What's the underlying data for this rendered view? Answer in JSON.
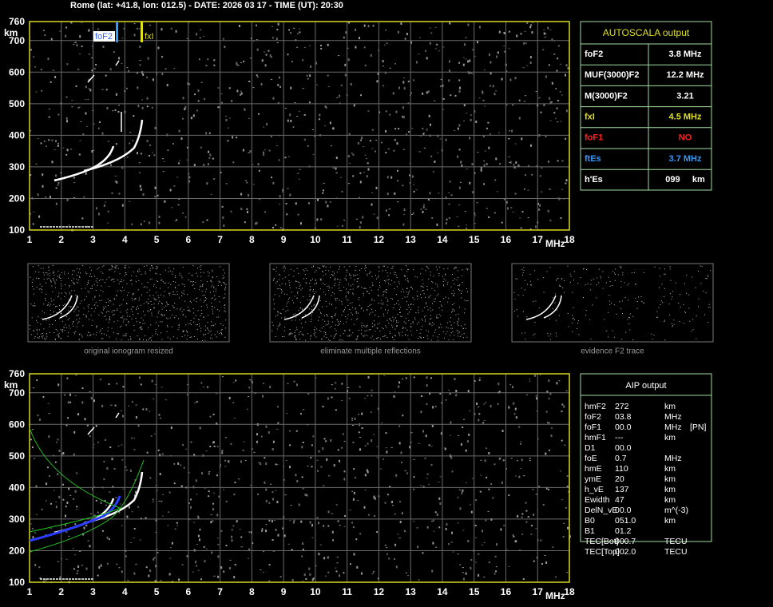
{
  "header": "Rome (lat: +41.8, lon: 012.5) - DATE: 2026 03 17 - TIME (UT): 20:30",
  "ionogram_top": {
    "y_unit": "km",
    "x_unit": "MHz",
    "xlim": [
      1,
      18
    ],
    "ylim": [
      100,
      760
    ],
    "xticks": [
      1,
      2,
      3,
      4,
      5,
      6,
      7,
      8,
      9,
      10,
      11,
      12,
      13,
      14,
      15,
      16,
      17,
      18
    ],
    "yticks": [
      100,
      200,
      300,
      400,
      500,
      600,
      700,
      760
    ],
    "markers": [
      "foF2",
      "fxI"
    ]
  },
  "autoscala": {
    "title": "AUTOSCALA output",
    "rows": [
      {
        "label": "foF2",
        "value": "3.8 MHz",
        "color": "#ffffff"
      },
      {
        "label": "MUF(3000)F2",
        "value": "12.2 MHz",
        "color": "#ffffff"
      },
      {
        "label": "M(3000)F2",
        "value": "3.21",
        "color": "#ffffff"
      },
      {
        "label": "fxI",
        "value": "4.5 MHz",
        "color": "#e0e020"
      },
      {
        "label": "foF1",
        "value": "NO",
        "color": "#ff2020"
      },
      {
        "label": "ftEs",
        "value": "3.7 MHz",
        "color": "#3399ff"
      },
      {
        "label": "h'Es",
        "value": "099     km",
        "color": "#ffffff"
      }
    ]
  },
  "thumbnails": [
    "original ionogram resized",
    "eliminate multiple reflections",
    "evidence F2 trace"
  ],
  "ionogram_bottom": {
    "y_unit": "km",
    "x_unit": "MHz",
    "xlim": [
      1,
      18
    ],
    "ylim": [
      100,
      760
    ],
    "xticks": [
      1,
      2,
      3,
      4,
      5,
      6,
      7,
      8,
      9,
      10,
      11,
      12,
      13,
      14,
      15,
      16,
      17,
      18
    ],
    "yticks": [
      100,
      200,
      300,
      400,
      500,
      600,
      700,
      760
    ]
  },
  "aip": {
    "title": "AIP output",
    "rows": [
      [
        "hmF2",
        "272",
        "km",
        ""
      ],
      [
        "foF2",
        "03.8",
        "MHz",
        ""
      ],
      [
        "foF1",
        "00.0",
        "MHz",
        "[PN]"
      ],
      [
        "hmF1",
        "---",
        "km",
        ""
      ],
      [
        "D1",
        "00.0",
        "",
        ""
      ],
      [
        "foE",
        "0.7",
        "MHz",
        ""
      ],
      [
        "hmE",
        "110",
        "km",
        ""
      ],
      [
        "ymE",
        "20",
        "km",
        ""
      ],
      [
        "h_vE",
        "137",
        "km",
        ""
      ],
      [
        "Ewidth",
        "47",
        "km",
        ""
      ],
      [
        "DelN_vE",
        "00.0",
        "m^(-3)",
        ""
      ],
      [
        "B0",
        "051.0",
        "km",
        ""
      ],
      [
        "B1",
        "01.2",
        "",
        ""
      ],
      [
        "TEC[Bot]",
        "000.7",
        "TECU",
        ""
      ],
      [
        "TEC[Top]",
        "002.0",
        "TECU",
        ""
      ]
    ]
  }
}
